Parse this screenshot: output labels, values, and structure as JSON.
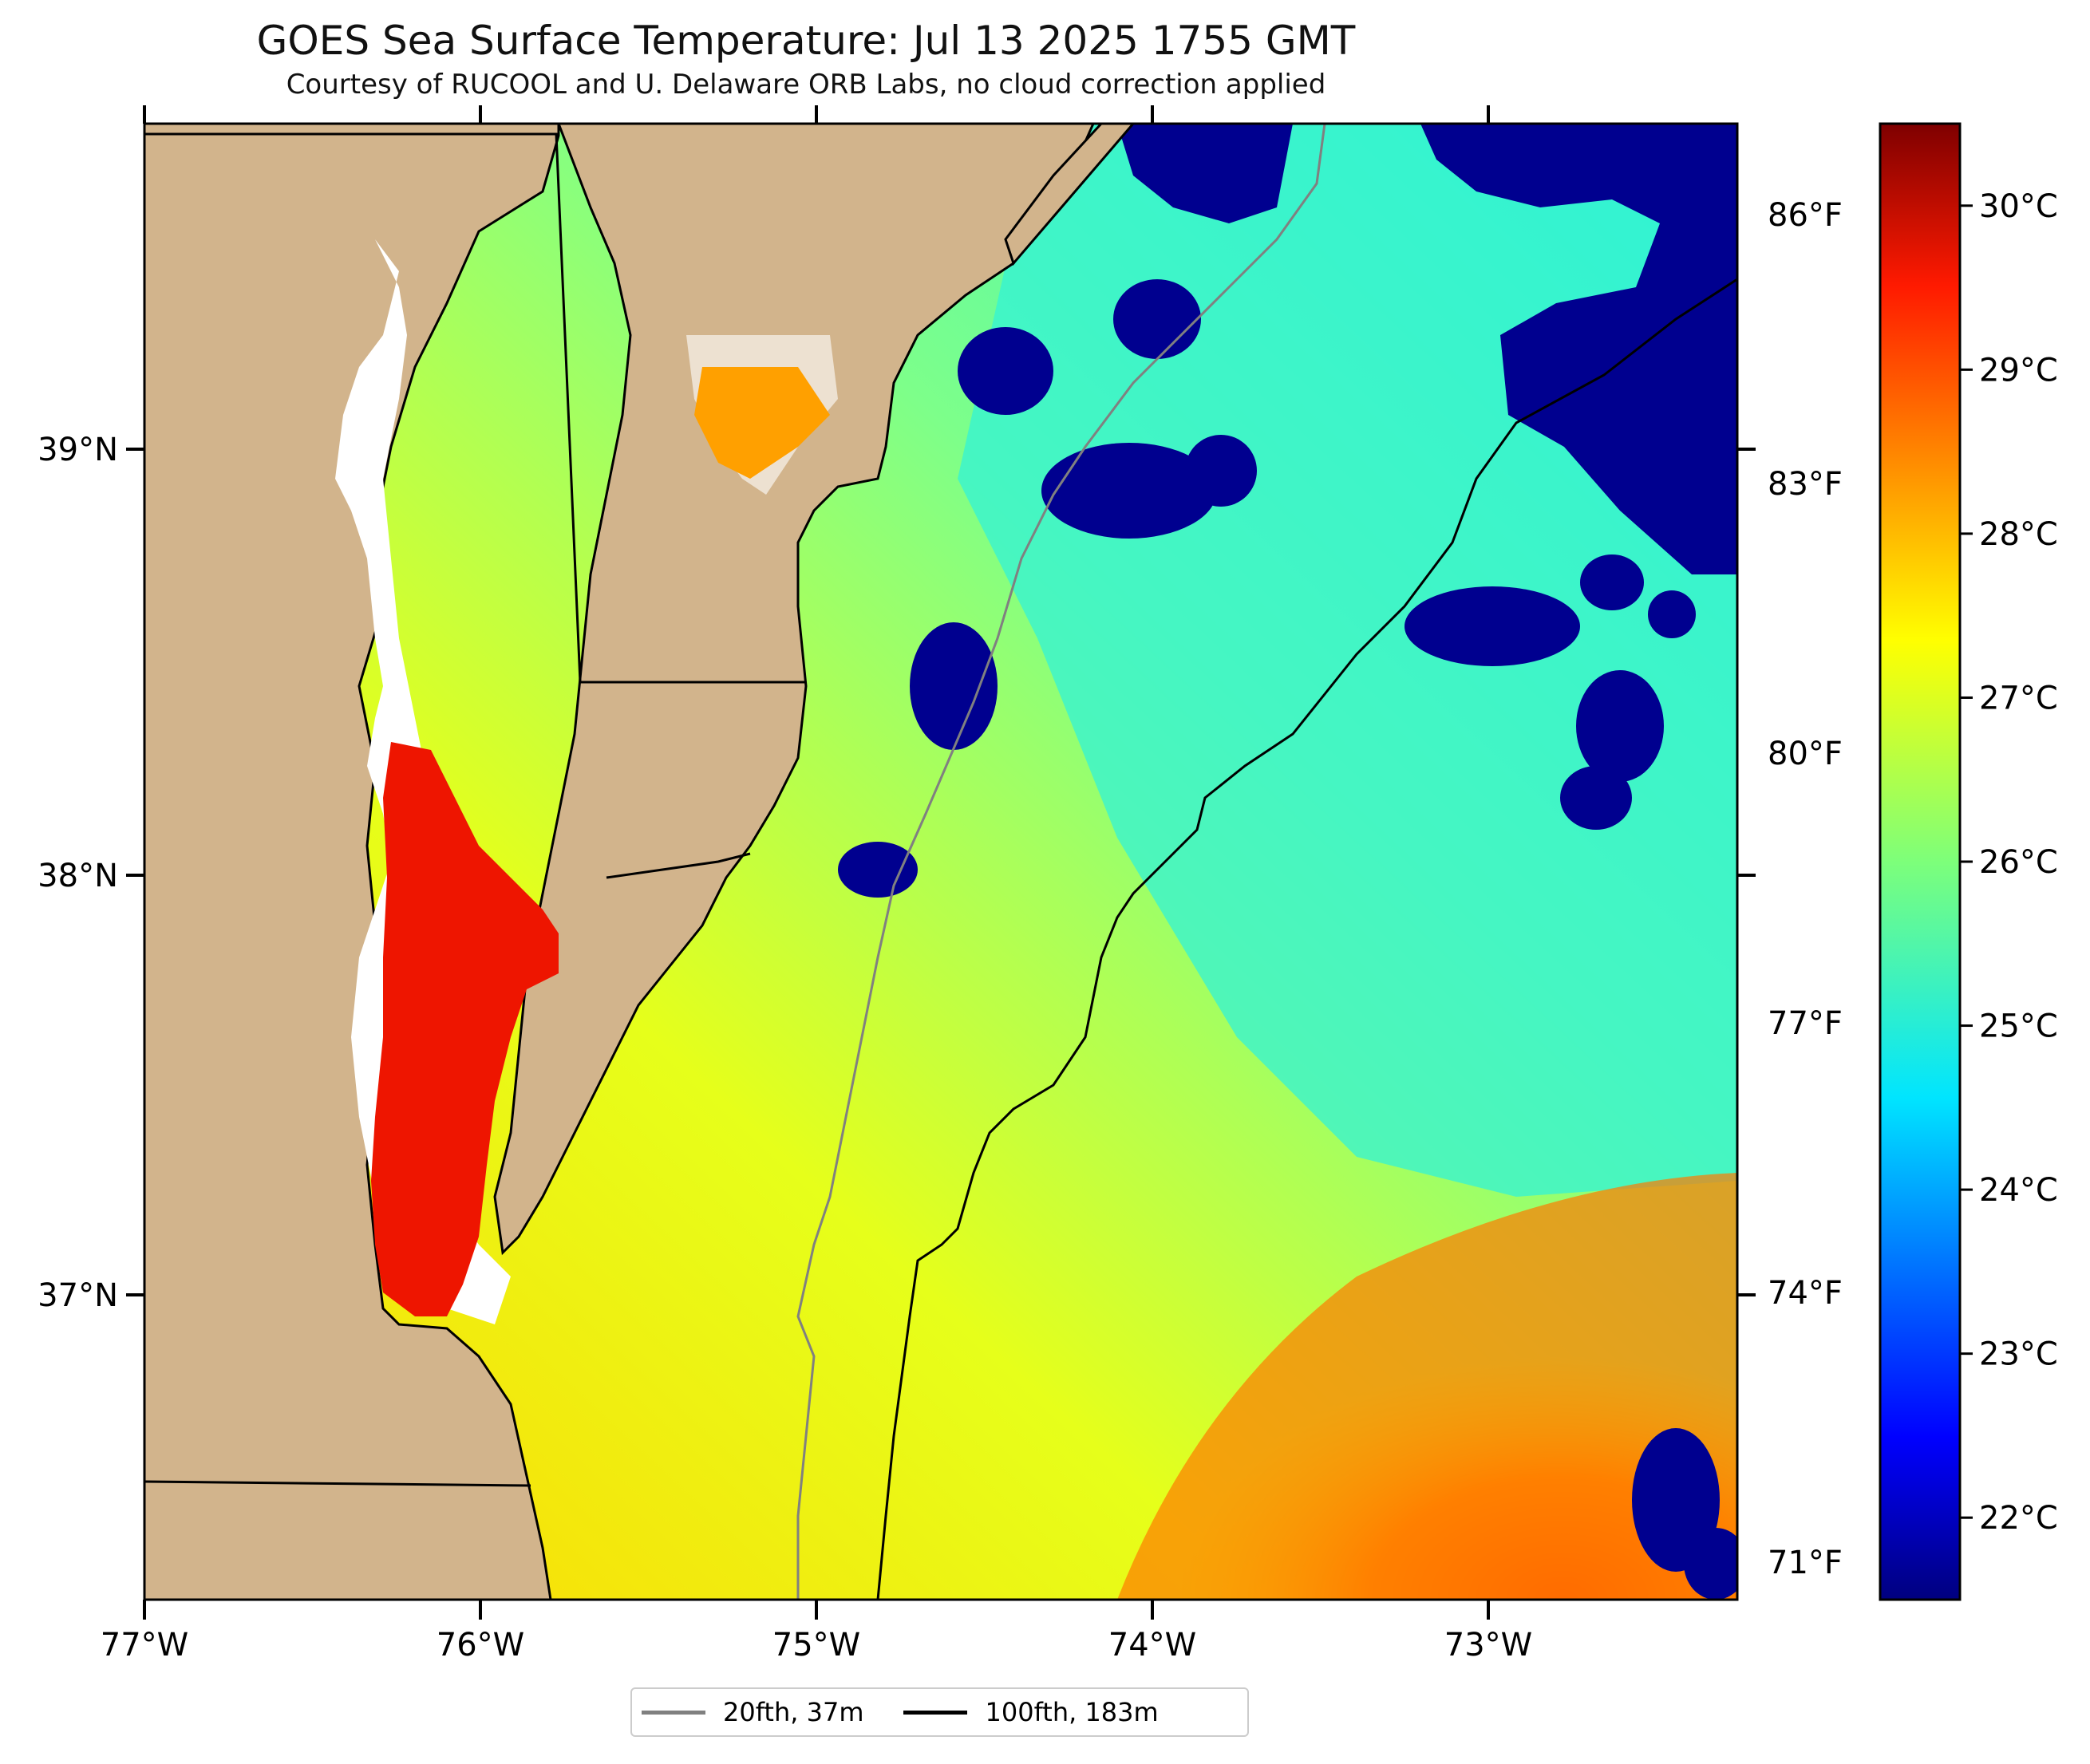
{
  "header": {
    "title": "GOES Sea Surface Temperature: Jul 13 2025 1755 GMT",
    "subtitle": "Courtesy of RUCOOL and U. Delaware ORB Labs, no cloud correction applied"
  },
  "map": {
    "lon_range": [
      -77.0,
      -72.25
    ],
    "lat_range": [
      36.3,
      39.75
    ],
    "lon_ticks": [
      "77°W",
      "76°W",
      "75°W",
      "74°W",
      "73°W"
    ],
    "lat_ticks": [
      "39°N",
      "38°N",
      "37°N"
    ],
    "fahrenheit_ticks": [
      "86°F",
      "83°F",
      "80°F",
      "77°F",
      "74°F",
      "71°F"
    ],
    "colors": {
      "land": "#d2b48c",
      "coast": "#000000",
      "nodata": "#ffffff",
      "isobath_20fth": "#808080",
      "isobath_100fth": "#000000"
    },
    "colormap": "jet"
  },
  "colorbar": {
    "range_c": [
      21.5,
      30.5
    ],
    "ticks": [
      "30°C",
      "29°C",
      "28°C",
      "27°C",
      "26°C",
      "25°C",
      "24°C",
      "23°C",
      "22°C"
    ]
  },
  "legend": {
    "items": [
      {
        "label": "20fth, 37m",
        "color": "#808080"
      },
      {
        "label": "100fth, 183m",
        "color": "#000000"
      }
    ]
  }
}
